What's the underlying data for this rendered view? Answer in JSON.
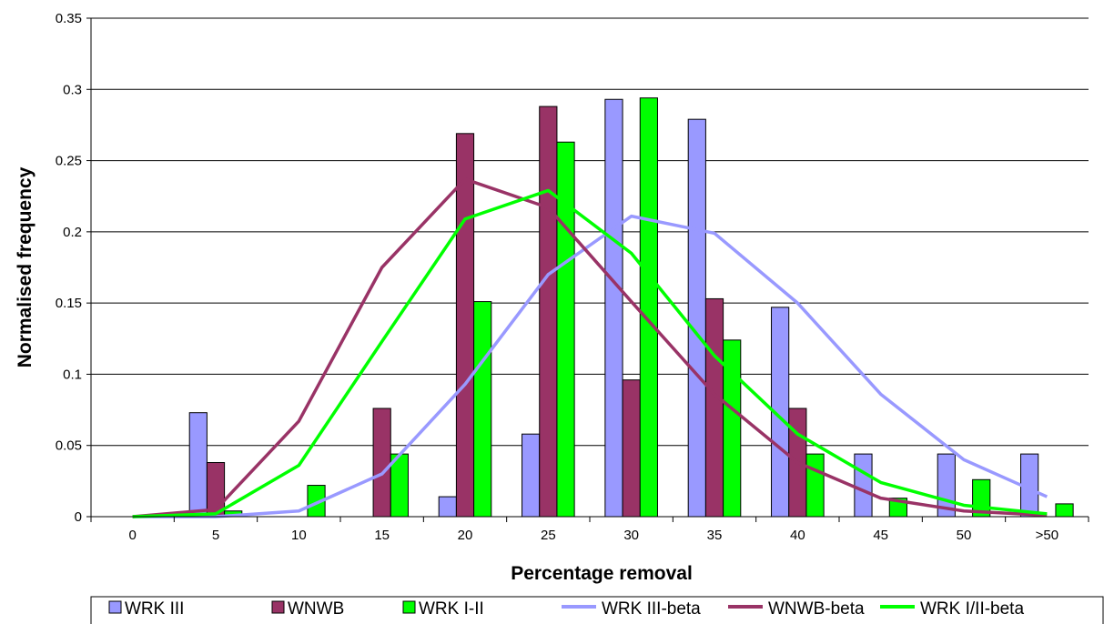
{
  "chart_data": {
    "type": "bar",
    "title": "",
    "xlabel": "Percentage removal",
    "ylabel": "Normalised frequency",
    "ylim": [
      0,
      0.35
    ],
    "yticks": [
      "0",
      "0.05",
      "0.1",
      "0.15",
      "0.2",
      "0.25",
      "0.3",
      "0.35"
    ],
    "yticks_values": [
      0,
      0.05,
      0.1,
      0.15,
      0.2,
      0.25,
      0.3,
      0.35
    ],
    "grid": true,
    "legend_position": "bottom",
    "categories": [
      "0",
      "5",
      "10",
      "15",
      "20",
      "25",
      "30",
      "35",
      "40",
      "45",
      "50",
      ">50"
    ],
    "series": [
      {
        "name": "WRK III",
        "kind": "bar",
        "color": "#9999ff",
        "values": [
          0,
          0.073,
          0,
          0,
          0.014,
          0.058,
          0.293,
          0.279,
          0.147,
          0.044,
          0.044,
          0.044
        ]
      },
      {
        "name": "WNWB",
        "kind": "bar",
        "color": "#993366",
        "values": [
          0,
          0.038,
          0,
          0.076,
          0.269,
          0.288,
          0.096,
          0.153,
          0.076,
          0,
          0,
          0
        ]
      },
      {
        "name": "WRK I-II",
        "kind": "bar",
        "color": "#00ff00",
        "values": [
          0,
          0.004,
          0.022,
          0.044,
          0.151,
          0.263,
          0.294,
          0.124,
          0.044,
          0.013,
          0.026,
          0.009
        ]
      },
      {
        "name": "WRK III-beta",
        "kind": "line",
        "color": "#9999ff",
        "values": [
          0,
          0,
          0.004,
          0.03,
          0.093,
          0.17,
          0.211,
          0.199,
          0.15,
          0.086,
          0.04,
          0.014
        ]
      },
      {
        "name": "WNWB-beta",
        "kind": "line",
        "color": "#993366",
        "values": [
          0,
          0.005,
          0.067,
          0.175,
          0.237,
          0.217,
          0.151,
          0.086,
          0.038,
          0.013,
          0.004,
          0.001
        ]
      },
      {
        "name": "WRK I/II-beta",
        "kind": "line",
        "color": "#00ff00",
        "values": [
          0,
          0.002,
          0.036,
          0.123,
          0.209,
          0.229,
          0.185,
          0.113,
          0.058,
          0.024,
          0.008,
          0.002
        ]
      }
    ]
  }
}
